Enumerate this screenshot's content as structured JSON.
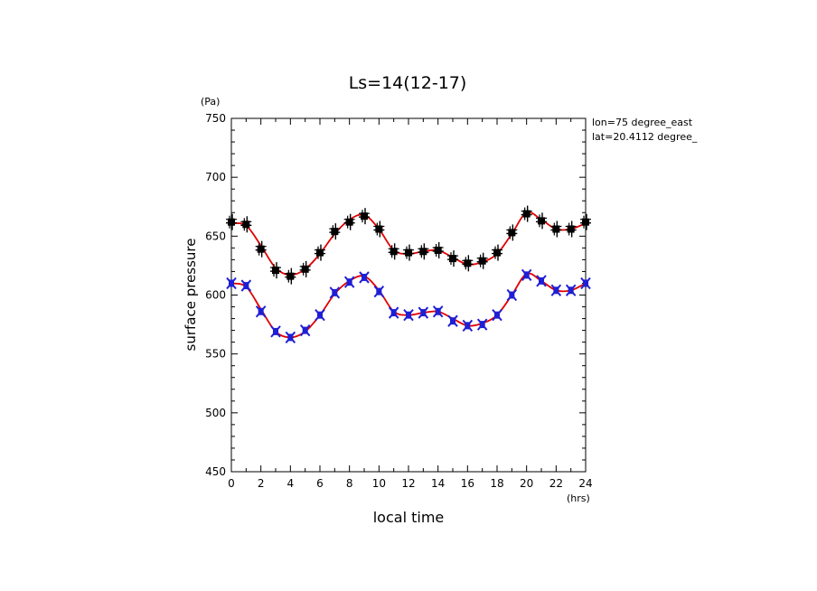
{
  "chart_data": {
    "type": "line",
    "title": "Ls=14(12-17)",
    "xlabel": "local time",
    "ylabel": "surface pressure",
    "x_unit": "(hrs)",
    "y_unit": "(Pa)",
    "xlim": [
      0,
      24
    ],
    "ylim": [
      450,
      750
    ],
    "x_ticks": [
      0,
      2,
      4,
      6,
      8,
      10,
      12,
      14,
      16,
      18,
      20,
      22,
      24
    ],
    "y_ticks": [
      450,
      500,
      550,
      600,
      650,
      700,
      750
    ],
    "grid": false,
    "annotations": [
      "lon=75 degree_east",
      "lat=20.4112 degree_"
    ],
    "x": [
      0,
      1,
      2,
      3,
      4,
      5,
      6,
      7,
      8,
      9,
      10,
      11,
      12,
      13,
      14,
      15,
      16,
      17,
      18,
      19,
      20,
      21,
      22,
      23,
      24
    ],
    "series": [
      {
        "marker": "square-cross",
        "color": "#000000",
        "values": [
          662,
          660,
          639,
          621,
          616,
          622,
          636,
          654,
          662,
          667,
          656,
          637,
          636,
          637,
          638,
          631,
          627,
          629,
          636,
          653,
          669,
          663,
          656,
          656,
          662
        ]
      },
      {
        "marker": "x-cross",
        "color": "#1f1fd6",
        "values": [
          610,
          608,
          586,
          569,
          564,
          570,
          583,
          602,
          611,
          615,
          603,
          585,
          583,
          585,
          586,
          578,
          574,
          575,
          583,
          600,
          617,
          612,
          604,
          604,
          610
        ]
      }
    ],
    "fit_line_color": "#e00000",
    "fits": [
      [
        661,
        659,
        642,
        623,
        617,
        622,
        635,
        652,
        664,
        668,
        656,
        638,
        635,
        637,
        638,
        632,
        626,
        628,
        635,
        652,
        670,
        664,
        656,
        656,
        661
      ],
      [
        610,
        607,
        588,
        569,
        564,
        569,
        583,
        601,
        612,
        616,
        604,
        586,
        583,
        585,
        586,
        580,
        574,
        576,
        583,
        600,
        618,
        612,
        604,
        604,
        610
      ]
    ]
  }
}
